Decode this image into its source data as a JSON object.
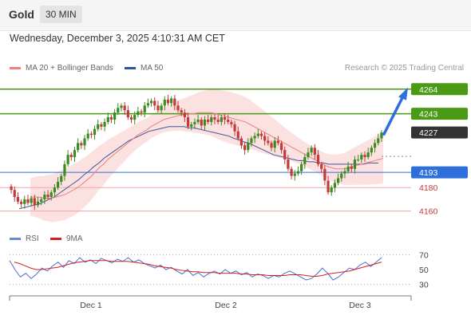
{
  "header": {
    "asset": "Gold",
    "timeframe": "30 MIN"
  },
  "datetime": "Wednesday, December 3, 2025 4:10:31 AM CET",
  "legend": {
    "ma20_label": "MA 20 + Bollinger Bands",
    "ma50_label": "MA 50",
    "credit": "Research © 2025 Trading Central"
  },
  "rsi_legend": {
    "rsi_label": "RSI",
    "ma_label": "9MA"
  },
  "colors": {
    "resistance": "#4a9a16",
    "support": "#2f6fdb",
    "support_line": "#f4a6a6",
    "candle_up": "#3d8a1e",
    "candle_down": "#c33a3a",
    "ma20": "#ef8080",
    "ma50": "#3a5a9a",
    "bollinger_fill": "#fbdcdc",
    "rsi": "#4f6fd0",
    "rsi_ma": "#d22020",
    "last_price": "#333333"
  },
  "chart_data": {
    "type": "candlestick",
    "ylim": [
      4155,
      4272
    ],
    "x_ticks": [
      "Dec 1",
      "Dec 2",
      "Dec 3"
    ],
    "levels": [
      {
        "value": 4264,
        "label": "4264",
        "kind": "resistance"
      },
      {
        "value": 4243,
        "label": "4243",
        "kind": "resistance"
      },
      {
        "value": 4227,
        "label": "4227",
        "kind": "last"
      },
      {
        "value": 4193,
        "label": "4193",
        "kind": "pivot"
      },
      {
        "value": 4180,
        "label": "4180",
        "kind": "support"
      },
      {
        "value": 4160,
        "label": "4160",
        "kind": "support"
      }
    ],
    "projection": {
      "from": 4227,
      "to": 4258
    },
    "closes": [
      4178,
      4172,
      4168,
      4166,
      4170,
      4167,
      4171,
      4165,
      4168,
      4170,
      4174,
      4172,
      4176,
      4180,
      4185,
      4190,
      4200,
      4208,
      4206,
      4212,
      4218,
      4216,
      4222,
      4226,
      4225,
      4230,
      4234,
      4232,
      4236,
      4240,
      4238,
      4244,
      4248,
      4250,
      4246,
      4240,
      4238,
      4242,
      4245,
      4244,
      4250,
      4252,
      4254,
      4250,
      4246,
      4250,
      4255,
      4252,
      4256,
      4250,
      4246,
      4244,
      4240,
      4232,
      4234,
      4236,
      4238,
      4233,
      4238,
      4236,
      4240,
      4238,
      4236,
      4240,
      4238,
      4236,
      4234,
      4228,
      4222,
      4216,
      4212,
      4218,
      4222,
      4224,
      4226,
      4224,
      4220,
      4218,
      4214,
      4220,
      4218,
      4212,
      4204,
      4196,
      4190,
      4192,
      4194,
      4200,
      4206,
      4210,
      4214,
      4208,
      4200,
      4196,
      4186,
      4176,
      4180,
      4184,
      4188,
      4192,
      4194,
      4198,
      4196,
      4204,
      4204,
      4208,
      4206,
      4210,
      4214,
      4218,
      4222,
      4227
    ],
    "ma20": [
      4172,
      4172,
      4172,
      4171,
      4171,
      4171,
      4172,
      4173,
      4174,
      4176,
      4178,
      4180,
      4183,
      4186,
      4189,
      4193,
      4197,
      4200,
      4204,
      4207,
      4210,
      4213,
      4216,
      4219,
      4222,
      4225,
      4227,
      4229,
      4232,
      4234,
      4236,
      4238,
      4239,
      4240,
      4241,
      4242,
      4242,
      4243,
      4243,
      4244,
      4244,
      4244,
      4244,
      4243,
      4242,
      4241,
      4240,
      4239,
      4238,
      4237,
      4236,
      4234,
      4232,
      4230,
      4228,
      4226,
      4224,
      4222,
      4220,
      4218,
      4216,
      4214,
      4212,
      4210,
      4208,
      4206,
      4204,
      4202,
      4200,
      4198,
      4197,
      4196,
      4196,
      4196,
      4197,
      4198,
      4199,
      4200,
      4201,
      4202,
      4203,
      4204,
      4205
    ],
    "ma50": [
      4162,
      4163,
      4164,
      4165,
      4166,
      4168,
      4170,
      4172,
      4175,
      4178,
      4181,
      4184,
      4187,
      4191,
      4194,
      4198,
      4201,
      4205,
      4208,
      4211,
      4214,
      4217,
      4220,
      4222,
      4224,
      4226,
      4228,
      4229,
      4230,
      4231,
      4232,
      4232,
      4232,
      4232,
      4231,
      4231,
      4230,
      4229,
      4228,
      4227,
      4226,
      4225,
      4224,
      4222,
      4221,
      4219,
      4218,
      4216,
      4214,
      4212,
      4210,
      4208,
      4207,
      4206,
      4205,
      4204,
      4203,
      4203,
      4202,
      4202,
      4201,
      4201,
      4200,
      4200,
      4200,
      4200,
      4200,
      4200,
      4200,
      4200,
      4201,
      4201,
      4201
    ],
    "rsi": {
      "ylim": [
        20,
        80
      ],
      "ticks": [
        70,
        50,
        30
      ],
      "values": [
        62,
        50,
        40,
        45,
        38,
        44,
        52,
        48,
        55,
        60,
        53,
        62,
        58,
        66,
        60,
        63,
        58,
        65,
        62,
        59,
        64,
        61,
        66,
        60,
        63,
        58,
        55,
        52,
        56,
        50,
        53,
        48,
        44,
        50,
        42,
        46,
        40,
        45,
        48,
        44,
        50,
        45,
        48,
        43,
        46,
        40,
        44,
        42,
        38,
        42,
        40,
        45,
        48,
        44,
        40,
        36,
        38,
        44,
        52,
        45,
        36,
        40,
        46,
        52,
        50,
        56,
        60,
        54,
        60,
        66
      ],
      "ma": [
        60,
        58,
        55,
        52,
        50,
        50,
        51,
        52,
        53,
        55,
        57,
        59,
        60,
        61,
        62,
        62,
        62,
        62,
        61,
        61,
        61,
        61,
        60,
        59,
        58,
        57,
        55,
        54,
        53,
        52,
        50,
        49,
        48,
        47,
        47,
        46,
        46,
        46,
        45,
        45,
        45,
        45,
        44,
        44,
        43,
        43,
        43,
        42,
        42,
        42,
        42,
        43,
        43,
        43,
        42,
        41,
        41,
        42,
        44,
        45,
        46,
        47,
        48,
        50,
        52,
        54,
        56,
        58,
        60
      ]
    }
  }
}
